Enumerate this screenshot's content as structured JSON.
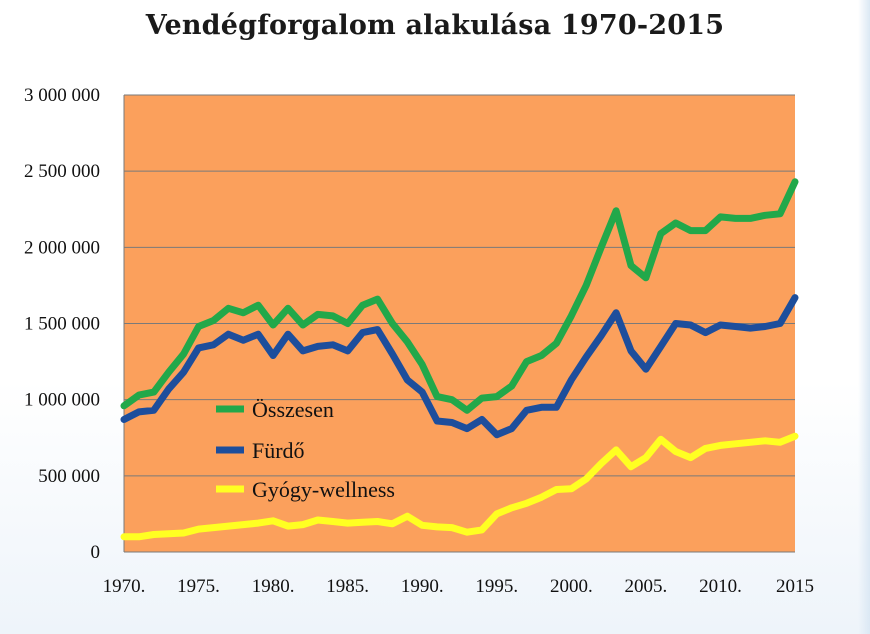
{
  "chart_data": {
    "type": "line",
    "title": "Vendégforgalom alakulása 1970-2015",
    "xlabel": "",
    "ylabel": "",
    "ylim": [
      0,
      3000000
    ],
    "yticks": [
      0,
      500000,
      1000000,
      1500000,
      2000000,
      2500000,
      3000000
    ],
    "ytick_labels": [
      "0",
      "500 000",
      "1 000 000",
      "1 500 000",
      "2 000 000",
      "2 500 000",
      "3 000 000"
    ],
    "xticks": [
      1970,
      1975,
      1980,
      1985,
      1990,
      1995,
      2000,
      2005,
      2010,
      2015
    ],
    "xtick_labels": [
      "1970.",
      "1975.",
      "1980.",
      "1985.",
      "1990.",
      "1995.",
      "2000.",
      "2005.",
      "2010.",
      "2015"
    ],
    "grid": true,
    "legend_position": "center-left",
    "plot_background": "#fba05c",
    "x": [
      1970,
      1971,
      1972,
      1973,
      1974,
      1975,
      1976,
      1977,
      1978,
      1979,
      1980,
      1981,
      1982,
      1983,
      1984,
      1985,
      1986,
      1987,
      1988,
      1989,
      1990,
      1991,
      1992,
      1993,
      1994,
      1995,
      1996,
      1997,
      1998,
      1999,
      2000,
      2001,
      2002,
      2003,
      2004,
      2005,
      2006,
      2007,
      2008,
      2009,
      2010,
      2011,
      2012,
      2013,
      2014,
      2015
    ],
    "series": [
      {
        "name": "Összesen",
        "color": "#22a84a",
        "values": [
          960000,
          1030000,
          1050000,
          1180000,
          1300000,
          1480000,
          1520000,
          1600000,
          1570000,
          1620000,
          1490000,
          1600000,
          1490000,
          1560000,
          1550000,
          1500000,
          1620000,
          1660000,
          1500000,
          1380000,
          1230000,
          1020000,
          1000000,
          930000,
          1010000,
          1020000,
          1090000,
          1250000,
          1290000,
          1370000,
          1550000,
          1750000,
          2000000,
          2240000,
          1880000,
          1800000,
          2090000,
          2160000,
          2110000,
          2110000,
          2200000,
          2190000,
          2190000,
          2210000,
          2220000,
          2430000
        ]
      },
      {
        "name": "Fürdő",
        "color": "#1d4e9c",
        "values": [
          870000,
          920000,
          930000,
          1070000,
          1180000,
          1340000,
          1360000,
          1430000,
          1390000,
          1430000,
          1290000,
          1430000,
          1320000,
          1350000,
          1360000,
          1320000,
          1440000,
          1460000,
          1300000,
          1130000,
          1050000,
          860000,
          850000,
          810000,
          870000,
          770000,
          810000,
          930000,
          950000,
          950000,
          1130000,
          1280000,
          1420000,
          1570000,
          1320000,
          1200000,
          1350000,
          1500000,
          1490000,
          1440000,
          1490000,
          1480000,
          1470000,
          1480000,
          1500000,
          1670000
        ]
      },
      {
        "name": "Gyógy-wellness",
        "color": "#ffff22",
        "values": [
          100000,
          100000,
          115000,
          120000,
          125000,
          150000,
          160000,
          170000,
          180000,
          190000,
          205000,
          170000,
          180000,
          210000,
          200000,
          190000,
          195000,
          200000,
          185000,
          235000,
          175000,
          165000,
          160000,
          130000,
          145000,
          250000,
          290000,
          320000,
          360000,
          410000,
          415000,
          480000,
          580000,
          670000,
          560000,
          620000,
          740000,
          660000,
          620000,
          680000,
          700000,
          710000,
          720000,
          730000,
          720000,
          760000
        ]
      }
    ]
  }
}
